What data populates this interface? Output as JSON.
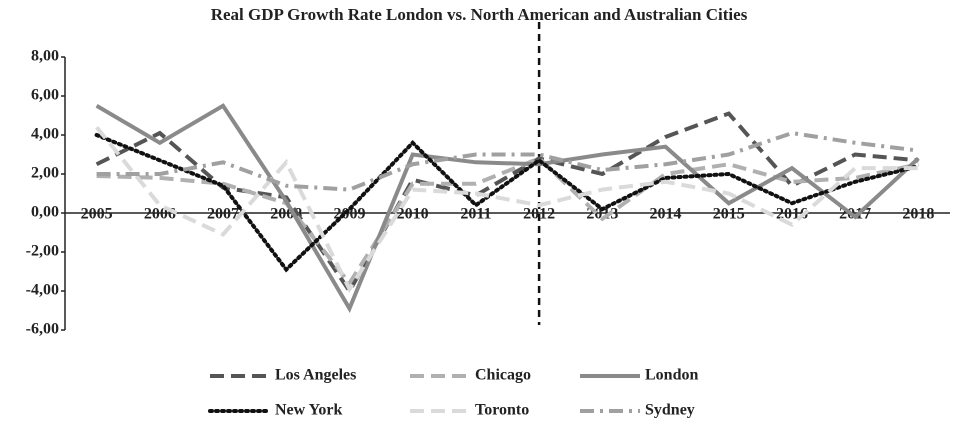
{
  "chart_data": {
    "type": "line",
    "title": "Real GDP Growth Rate London vs. North American and Australian Cities",
    "categories": [
      "2005",
      "2006",
      "2007",
      "2008",
      "2009",
      "2010",
      "2011",
      "2012",
      "2013",
      "2014",
      "2015",
      "2016",
      "2017",
      "2018"
    ],
    "reference_line": "2012",
    "series": [
      {
        "name": "Los Angeles",
        "color": "#555555",
        "dash": "dash",
        "values": [
          2.5,
          4.1,
          1.3,
          0.8,
          -4.0,
          1.7,
          0.9,
          2.8,
          2.0,
          3.9,
          5.1,
          1.4,
          3.0,
          2.7
        ]
      },
      {
        "name": "Chicago",
        "color": "#b0b0b0",
        "dash": "dash",
        "values": [
          1.9,
          1.8,
          1.5,
          0.5,
          -3.6,
          1.5,
          1.5,
          2.8,
          -0.3,
          2.0,
          2.5,
          1.6,
          1.8,
          2.5
        ]
      },
      {
        "name": "London",
        "color": "#8a8a8a",
        "dash": "solid",
        "values": [
          5.5,
          3.6,
          5.5,
          0.6,
          -4.9,
          3.0,
          2.6,
          2.5,
          3.0,
          3.4,
          0.5,
          2.3,
          -0.2,
          2.8
        ]
      },
      {
        "name": "New York",
        "color": "#111111",
        "dash": "dot",
        "values": [
          4.0,
          2.7,
          1.4,
          -2.9,
          0.2,
          3.6,
          0.4,
          2.7,
          0.2,
          1.8,
          2.0,
          0.5,
          1.6,
          2.4
        ]
      },
      {
        "name": "Toronto",
        "color": "#dadada",
        "dash": "dash",
        "values": [
          4.4,
          0.4,
          -1.1,
          2.6,
          -3.9,
          1.2,
          1.0,
          0.4,
          1.2,
          1.6,
          1.0,
          -0.6,
          2.3,
          2.3
        ]
      },
      {
        "name": "Sydney",
        "color": "#a0a0a0",
        "dash": "dashdot",
        "values": [
          2.0,
          2.0,
          2.6,
          1.4,
          1.2,
          2.5,
          3.0,
          3.0,
          2.2,
          2.5,
          3.0,
          4.1,
          3.6,
          3.2
        ]
      }
    ],
    "ylim": [
      -6,
      8
    ],
    "yticks": [
      {
        "value": -6,
        "label": "-6,00"
      },
      {
        "value": -4,
        "label": "-4,00"
      },
      {
        "value": -2,
        "label": "-2,00"
      },
      {
        "value": 0,
        "label": "0,00"
      },
      {
        "value": 2,
        "label": "2,00"
      },
      {
        "value": 4,
        "label": "4,00"
      },
      {
        "value": 6,
        "label": "6,00"
      },
      {
        "value": 8,
        "label": "8,00"
      }
    ],
    "legend": "bottom"
  }
}
